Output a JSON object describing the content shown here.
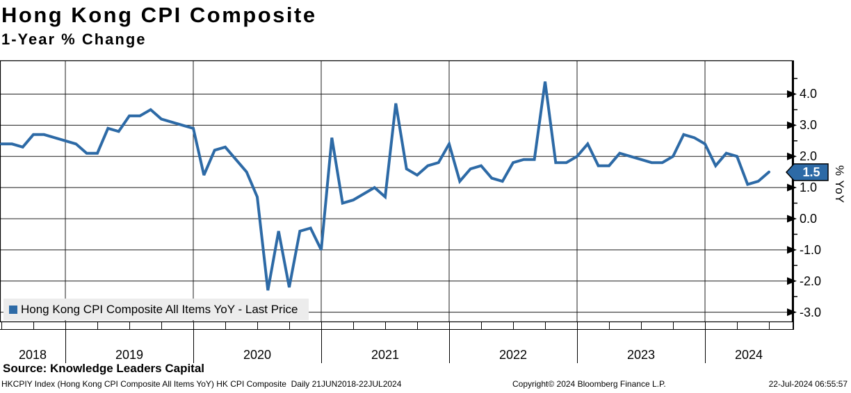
{
  "header": {
    "title": "Hong Kong CPI Composite",
    "subtitle": "1-Year % Change"
  },
  "legend": {
    "label": "Hong Kong CPI Composite All Items YoY - Last Price",
    "swatch_color": "#2d6aa6"
  },
  "axis": {
    "y_label": "% YoY",
    "y_ticks": [
      "4.0",
      "3.0",
      "2.0",
      "1.0",
      "0.0",
      "-1.0",
      "-2.0",
      "-3.0"
    ],
    "x_ticks": [
      "2018",
      "2019",
      "2020",
      "2021",
      "2022",
      "2023",
      "2024"
    ]
  },
  "last_price": {
    "value": "1.5",
    "box_color": "#2d6aa6",
    "text_color": "#ffffff"
  },
  "footer": {
    "source": "Source: Knowledge Leaders Capital",
    "security": "HKCPIY Index (Hong Kong CPI Composite All Items YoY) HK CPI Composite  Daily 21JUN2018-22JUL2024",
    "copyright": "Copyright© 2024 Bloomberg Finance L.P.",
    "timestamp": "22-Jul-2024 06:55:57"
  },
  "chart_data": {
    "type": "line",
    "title": "Hong Kong CPI Composite",
    "subtitle": "1-Year % Change",
    "xlabel": "",
    "ylabel": "% YoY",
    "ylim": [
      -3.3,
      5.1
    ],
    "grid": true,
    "legend_position": "bottom-left",
    "x_start": "2018-06",
    "x_end": "2024-06",
    "frequency": "monthly",
    "y_tick_values": [
      4.0,
      3.0,
      2.0,
      1.0,
      0.0,
      -1.0,
      -2.0,
      -3.0
    ],
    "x_year_labels": [
      "2018",
      "2019",
      "2020",
      "2021",
      "2022",
      "2023",
      "2024"
    ],
    "last_price": 1.5,
    "series": [
      {
        "name": "Hong Kong CPI Composite All Items YoY - Last Price",
        "color": "#2d6aa6",
        "values": [
          2.4,
          2.4,
          2.3,
          2.7,
          2.7,
          2.6,
          2.5,
          2.4,
          2.1,
          2.1,
          2.9,
          2.8,
          3.3,
          3.3,
          3.5,
          3.2,
          3.1,
          3.0,
          2.9,
          1.4,
          2.2,
          2.3,
          1.9,
          1.5,
          0.7,
          -2.3,
          -0.4,
          -2.2,
          -0.4,
          -0.3,
          -1.0,
          2.6,
          0.5,
          0.6,
          0.8,
          1.0,
          0.7,
          3.7,
          1.6,
          1.4,
          1.7,
          1.8,
          2.4,
          1.2,
          1.6,
          1.7,
          1.3,
          1.2,
          1.8,
          1.9,
          1.9,
          4.4,
          1.8,
          1.8,
          2.0,
          2.4,
          1.7,
          1.7,
          2.1,
          2.0,
          1.9,
          1.8,
          1.8,
          2.0,
          2.7,
          2.6,
          2.4,
          1.7,
          2.1,
          2.0,
          1.1,
          1.2,
          1.5
        ]
      }
    ]
  }
}
